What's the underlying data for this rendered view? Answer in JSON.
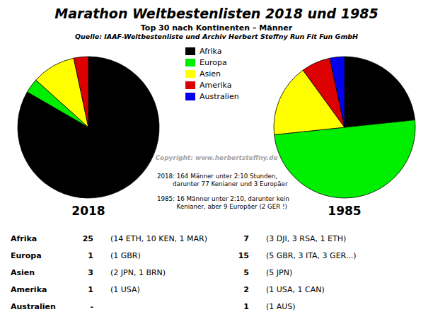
{
  "title": "Marathon Weltbestenlisten 2018 und 1985",
  "subtitle": [
    "Top 30 nach Kontinenten – Männer",
    "Quelle: IAAF-Weltbestenliste und Archiv Herbert Steffny Run Fit Fun GmbH"
  ],
  "annotations": [
    "Copyright:  www.herbertsteffny.de",
    "2018: 164 Männer unter 2:10 Stunden,\n        darunter 77 Kenianer und 3 Europäer",
    "1985: 16 Männer unter 2:10, darunter kein\n          Kenianer, aber 9 Europäer (2 GER !)"
  ],
  "table": {
    "rows": [
      [
        "Afrika",
        "25",
        "(14 ETH, 10 KEN, 1 MAR)",
        "7",
        "(3 DJI, 3 RSA, 1 ETH)"
      ],
      [
        "Europa",
        "1",
        "(1 GBR)",
        "15",
        "(5 GBR, 3 ITA, 3 GER...)"
      ],
      [
        "Asien",
        "3",
        "(2 JPN, 1 BRN)",
        "5",
        "(5 JPN)"
      ],
      [
        "Amerika",
        "1",
        "(1 USA)",
        "2",
        "(1 USA, 1 CAN)"
      ],
      [
        "Australien",
        "-",
        null,
        "1",
        "(1 AUS)"
      ]
    ]
  },
  "chart_data": [
    {
      "type": "pie",
      "title": "2018",
      "categories": [
        "Afrika",
        "Europa",
        "Asien",
        "Amerika",
        "Australien"
      ],
      "values": [
        25,
        1,
        3,
        1,
        0
      ],
      "colors": [
        "#000000",
        "#00ee00",
        "#ffff00",
        "#dd0000",
        "#0000ee"
      ],
      "legend": "top"
    },
    {
      "type": "pie",
      "title": "1985",
      "categories": [
        "Afrika",
        "Europa",
        "Asien",
        "Amerika",
        "Australien"
      ],
      "values": [
        7,
        15,
        5,
        2,
        1
      ],
      "colors": [
        "#000000",
        "#00ee00",
        "#ffff00",
        "#dd0000",
        "#0000ee"
      ]
    }
  ]
}
